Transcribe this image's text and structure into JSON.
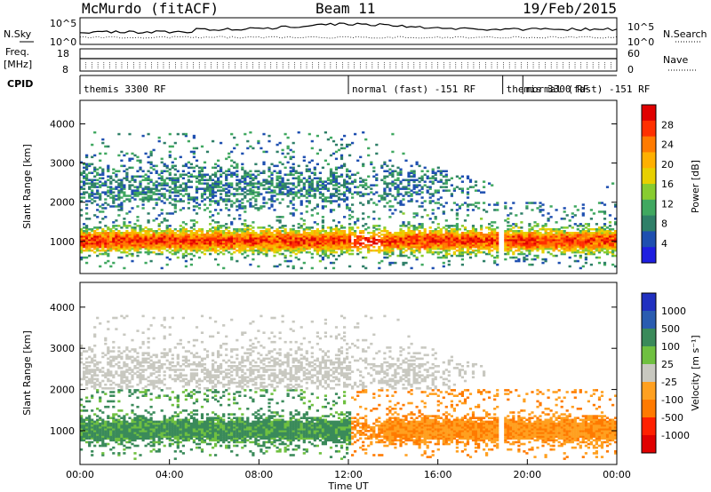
{
  "chart_data": [
    {
      "type": "line",
      "header": {
        "station": "McMurdo (fitACF)",
        "beam": "Beam 11",
        "date": "19/Feb/2015"
      },
      "left_label": "N.Sky",
      "right_label": "N.Search",
      "left_ticks": [
        "10^5",
        "10^0"
      ],
      "right_ticks": [
        "10^5",
        "10^0"
      ],
      "note": "noise level strip"
    },
    {
      "type": "line",
      "left_label_lines": [
        "Freq.",
        "[MHz]"
      ],
      "right_label": "Nave",
      "left_ticks": [
        "18",
        "8"
      ],
      "right_ticks": [
        "60",
        "0"
      ]
    },
    {
      "type": "table",
      "label": "CPID",
      "segments": [
        {
          "start_hour": 0,
          "text": "themis 3300 RF"
        },
        {
          "start_hour": 12,
          "text": "normal (fast) -151 RF"
        },
        {
          "start_hour": 18.9,
          "text": "themis 3300 RF"
        },
        {
          "start_hour": 19.8,
          "text": "normal (fast) -151 RF"
        }
      ]
    },
    {
      "type": "heatmap",
      "ylabel": "Slant Range [km]",
      "ylim": [
        180,
        4600
      ],
      "yticks": [
        1000,
        2000,
        3000,
        4000
      ],
      "xlim": [
        0,
        24
      ],
      "colorbar": {
        "label": "Power [dB]",
        "ticks": [
          "28",
          "24",
          "20",
          "16",
          "12",
          "8",
          "4"
        ],
        "colors": [
          "#e00000",
          "#ff3000",
          "#ff7b00",
          "#ffb000",
          "#e8d000",
          "#88cc30",
          "#40a860",
          "#2f7f68",
          "#1e4fb0",
          "#1e1ee0"
        ]
      }
    },
    {
      "type": "heatmap",
      "ylabel": "Slant Range [km]",
      "ylim": [
        180,
        4600
      ],
      "yticks": [
        1000,
        2000,
        3000,
        4000
      ],
      "xlim": [
        0,
        24
      ],
      "xlabel": "Time UT",
      "xticks": [
        "00:00",
        "04:00",
        "08:00",
        "12:00",
        "16:00",
        "20:00",
        "00:00"
      ],
      "colorbar": {
        "label": "Velocity [m s⁻¹]",
        "ticks": [
          "1000",
          "500",
          "100",
          "25",
          "-25",
          "-100",
          "-500",
          "-1000"
        ],
        "colors": [
          "#2030c0",
          "#2a5cb0",
          "#3a8a5a",
          "#6fc040",
          "#c8c8c0",
          "#ffa020",
          "#ff7a00",
          "#ff2000",
          "#e00000"
        ]
      }
    }
  ]
}
